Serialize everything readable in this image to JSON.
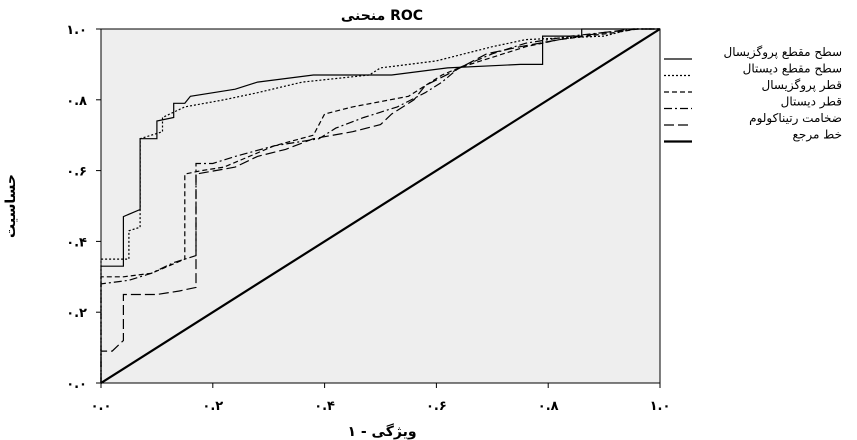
{
  "chart_data": {
    "type": "line",
    "title": "منحنی ROC",
    "xlabel": "ویژگی - ۱",
    "ylabel": "حساسیت",
    "xlim": [
      0,
      1
    ],
    "ylim": [
      0,
      1
    ],
    "x_ticks": [
      {
        "value": 0.0,
        "label": "۰.۰"
      },
      {
        "value": 0.2,
        "label": "۰.۲"
      },
      {
        "value": 0.4,
        "label": "۰.۴"
      },
      {
        "value": 0.6,
        "label": "۰.۶"
      },
      {
        "value": 0.8,
        "label": "۰.۸"
      },
      {
        "value": 1.0,
        "label": "۱.۰"
      }
    ],
    "y_ticks": [
      {
        "value": 0.0,
        "label": "۰.۰"
      },
      {
        "value": 0.2,
        "label": "۰.۲"
      },
      {
        "value": 0.4,
        "label": "۰.۴"
      },
      {
        "value": 0.6,
        "label": "۰.۶"
      },
      {
        "value": 0.8,
        "label": "۰.۸"
      },
      {
        "value": 1.0,
        "label": "۱.۰"
      }
    ],
    "grid": false,
    "legend_position": "right",
    "plot_background": "#eeeeee",
    "series": [
      {
        "name": "سطح مقطع پروگزیسال",
        "dash": "solid",
        "width": 1.2,
        "points": [
          [
            0,
            0
          ],
          [
            0,
            0.33
          ],
          [
            0.04,
            0.33
          ],
          [
            0.04,
            0.47
          ],
          [
            0.07,
            0.49
          ],
          [
            0.07,
            0.69
          ],
          [
            0.1,
            0.69
          ],
          [
            0.1,
            0.74
          ],
          [
            0.13,
            0.75
          ],
          [
            0.13,
            0.79
          ],
          [
            0.15,
            0.79
          ],
          [
            0.16,
            0.81
          ],
          [
            0.24,
            0.83
          ],
          [
            0.28,
            0.85
          ],
          [
            0.38,
            0.87
          ],
          [
            0.52,
            0.87
          ],
          [
            0.62,
            0.89
          ],
          [
            0.75,
            0.9
          ],
          [
            0.79,
            0.9
          ],
          [
            0.79,
            0.98
          ],
          [
            0.86,
            0.98
          ],
          [
            0.86,
            1.0
          ],
          [
            1,
            1
          ]
        ]
      },
      {
        "name": "سطح مقطع دیستال",
        "dash": "dotted",
        "width": 1.2,
        "points": [
          [
            0,
            0
          ],
          [
            0,
            0.35
          ],
          [
            0.05,
            0.35
          ],
          [
            0.05,
            0.43
          ],
          [
            0.07,
            0.44
          ],
          [
            0.07,
            0.69
          ],
          [
            0.11,
            0.71
          ],
          [
            0.11,
            0.75
          ],
          [
            0.15,
            0.78
          ],
          [
            0.22,
            0.8
          ],
          [
            0.28,
            0.82
          ],
          [
            0.36,
            0.85
          ],
          [
            0.48,
            0.87
          ],
          [
            0.5,
            0.89
          ],
          [
            0.6,
            0.91
          ],
          [
            0.7,
            0.95
          ],
          [
            0.76,
            0.97
          ],
          [
            0.9,
            0.98
          ],
          [
            0.95,
            1.0
          ],
          [
            1,
            1
          ]
        ]
      },
      {
        "name": "قطر پروگزیسال",
        "dash": "dashed",
        "width": 1.2,
        "points": [
          [
            0,
            0
          ],
          [
            0,
            0.3
          ],
          [
            0.04,
            0.3
          ],
          [
            0.09,
            0.31
          ],
          [
            0.12,
            0.33
          ],
          [
            0.15,
            0.35
          ],
          [
            0.15,
            0.59
          ],
          [
            0.18,
            0.6
          ],
          [
            0.22,
            0.61
          ],
          [
            0.25,
            0.63
          ],
          [
            0.31,
            0.67
          ],
          [
            0.38,
            0.7
          ],
          [
            0.4,
            0.76
          ],
          [
            0.45,
            0.78
          ],
          [
            0.55,
            0.81
          ],
          [
            0.61,
            0.87
          ],
          [
            0.64,
            0.89
          ],
          [
            0.7,
            0.92
          ],
          [
            0.76,
            0.95
          ],
          [
            0.82,
            0.97
          ],
          [
            0.92,
            0.99
          ],
          [
            0.96,
            1.0
          ],
          [
            1,
            1
          ]
        ]
      },
      {
        "name": "قطر دیستال",
        "dash": "dash-dot",
        "width": 1.2,
        "points": [
          [
            0,
            0
          ],
          [
            0,
            0.28
          ],
          [
            0.05,
            0.29
          ],
          [
            0.09,
            0.31
          ],
          [
            0.13,
            0.34
          ],
          [
            0.17,
            0.36
          ],
          [
            0.17,
            0.62
          ],
          [
            0.2,
            0.62
          ],
          [
            0.24,
            0.64
          ],
          [
            0.31,
            0.67
          ],
          [
            0.39,
            0.69
          ],
          [
            0.42,
            0.72
          ],
          [
            0.47,
            0.75
          ],
          [
            0.53,
            0.78
          ],
          [
            0.58,
            0.82
          ],
          [
            0.61,
            0.85
          ],
          [
            0.64,
            0.89
          ],
          [
            0.7,
            0.93
          ],
          [
            0.76,
            0.96
          ],
          [
            0.84,
            0.98
          ],
          [
            0.9,
            0.99
          ],
          [
            0.96,
            1.0
          ],
          [
            1,
            1
          ]
        ]
      },
      {
        "name": "ضخامت رتیناکولوم",
        "dash": "long-dash",
        "width": 1.2,
        "points": [
          [
            0,
            0
          ],
          [
            0,
            0.09
          ],
          [
            0.02,
            0.09
          ],
          [
            0.04,
            0.12
          ],
          [
            0.04,
            0.25
          ],
          [
            0.1,
            0.25
          ],
          [
            0.14,
            0.26
          ],
          [
            0.17,
            0.27
          ],
          [
            0.17,
            0.59
          ],
          [
            0.24,
            0.61
          ],
          [
            0.28,
            0.64
          ],
          [
            0.33,
            0.66
          ],
          [
            0.38,
            0.69
          ],
          [
            0.45,
            0.71
          ],
          [
            0.5,
            0.73
          ],
          [
            0.52,
            0.76
          ],
          [
            0.56,
            0.8
          ],
          [
            0.58,
            0.84
          ],
          [
            0.63,
            0.88
          ],
          [
            0.69,
            0.93
          ],
          [
            0.75,
            0.95
          ],
          [
            0.82,
            0.97
          ],
          [
            0.9,
            0.99
          ],
          [
            0.95,
            1.0
          ],
          [
            1,
            1
          ]
        ]
      },
      {
        "name": "خط مرجع",
        "dash": "solid",
        "width": 2.2,
        "points": [
          [
            0,
            0
          ],
          [
            1,
            1
          ]
        ]
      }
    ]
  }
}
